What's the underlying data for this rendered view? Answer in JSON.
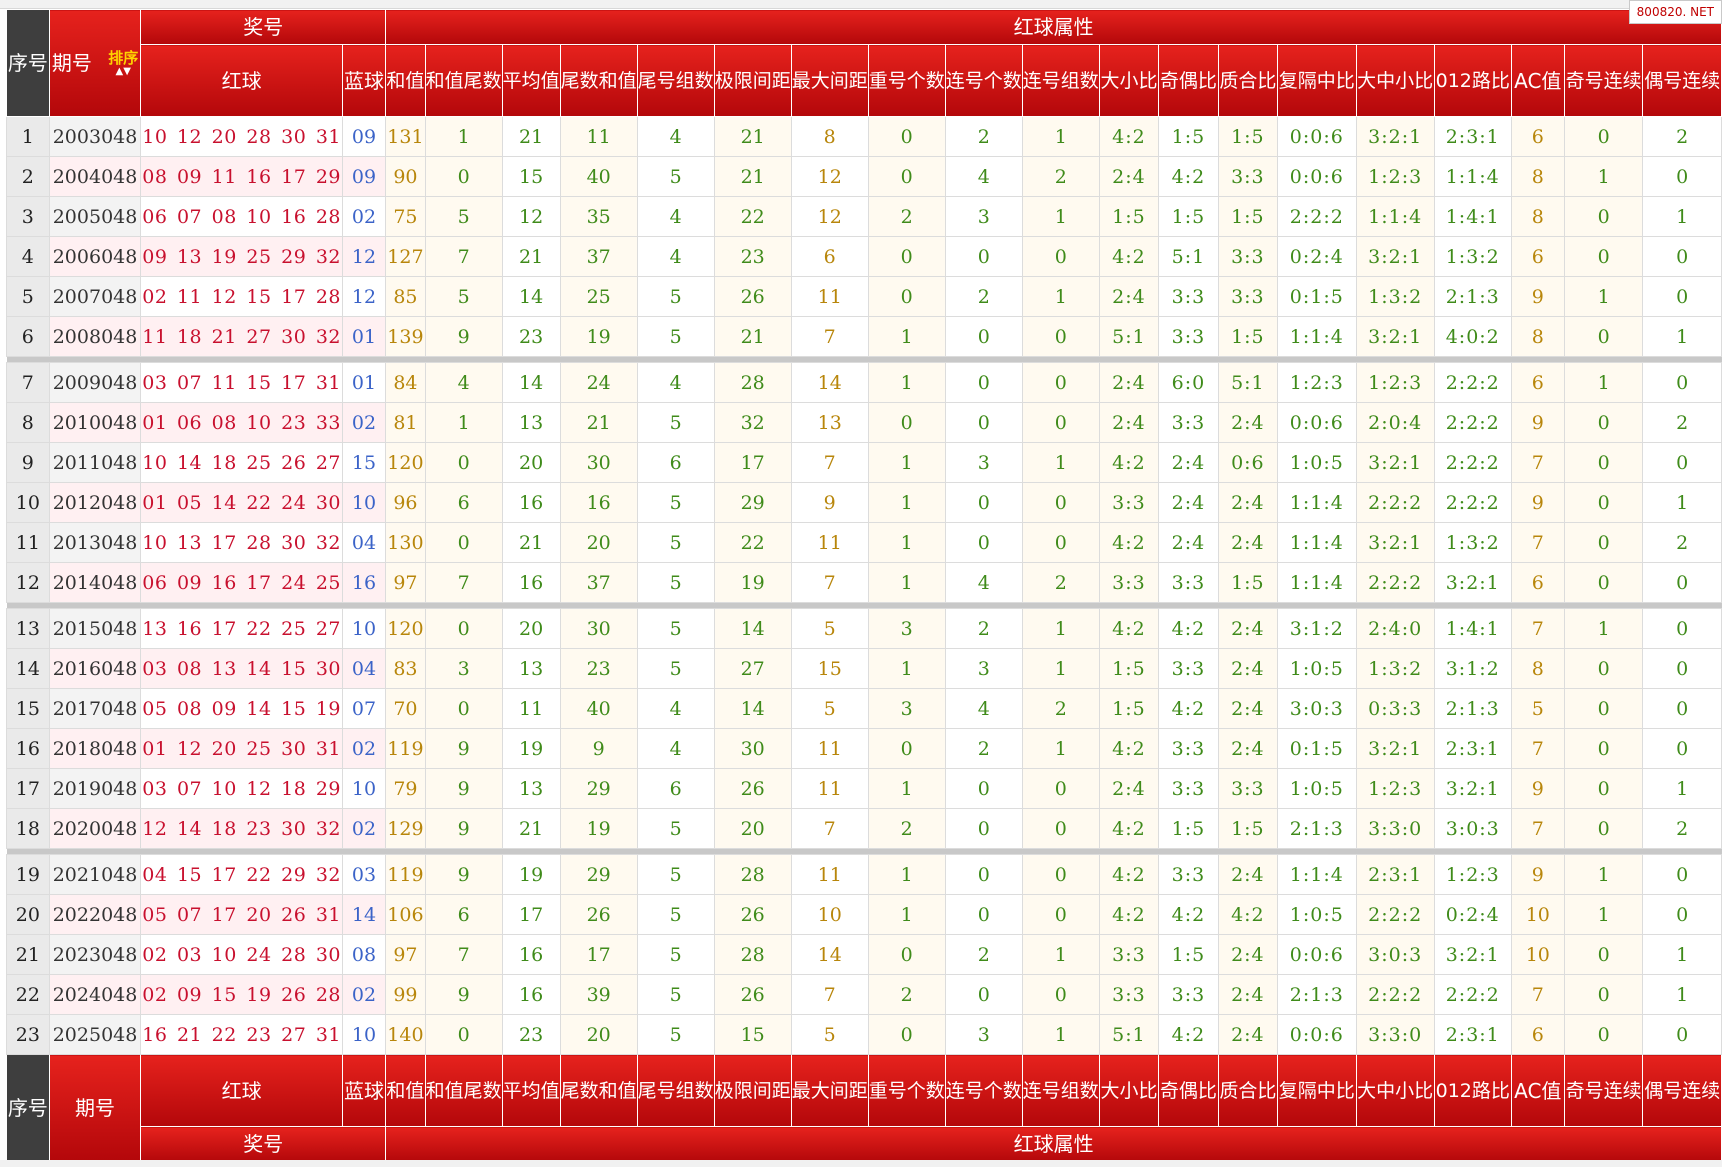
{
  "watermark": "800820. NET",
  "header": {
    "seq": "序号",
    "issue": "期号",
    "sort_label": "排序",
    "prize": "奖号",
    "red_attr": "红球属性",
    "red_ball": "红球",
    "blue_ball": "蓝球",
    "cols": [
      "和值",
      "和值尾数",
      "平均值",
      "尾数和值",
      "尾号组数",
      "极限间距",
      "最大间距",
      "重号个数",
      "连号个数",
      "连号组数",
      "大小比",
      "奇偶比",
      "质合比",
      "复隔中比",
      "大中小比",
      "012路比",
      "AC值",
      "奇号连续",
      "偶号连续"
    ]
  },
  "colors": {
    "header_red": "#c8100e",
    "red_ball": "#c8102e",
    "blue_ball": "#3b63c8",
    "attr_green": "#3f8b1a",
    "attr_gold": "#b8860b"
  },
  "rows": [
    {
      "seq": "1",
      "issue": "2003048",
      "red": "10 12 20 28 30 31",
      "blue": "09",
      "v": [
        "131",
        "1",
        "21",
        "11",
        "4",
        "21",
        "8",
        "0",
        "2",
        "1",
        "4:2",
        "1:5",
        "1:5",
        "0:0:6",
        "3:2:1",
        "2:3:1",
        "6",
        "0",
        "2"
      ]
    },
    {
      "seq": "2",
      "issue": "2004048",
      "red": "08 09 11 16 17 29",
      "blue": "09",
      "v": [
        "90",
        "0",
        "15",
        "40",
        "5",
        "21",
        "12",
        "0",
        "4",
        "2",
        "2:4",
        "4:2",
        "3:3",
        "0:0:6",
        "1:2:3",
        "1:1:4",
        "8",
        "1",
        "0"
      ]
    },
    {
      "seq": "3",
      "issue": "2005048",
      "red": "06 07 08 10 16 28",
      "blue": "02",
      "v": [
        "75",
        "5",
        "12",
        "35",
        "4",
        "22",
        "12",
        "2",
        "3",
        "1",
        "1:5",
        "1:5",
        "1:5",
        "2:2:2",
        "1:1:4",
        "1:4:1",
        "8",
        "0",
        "1"
      ]
    },
    {
      "seq": "4",
      "issue": "2006048",
      "red": "09 13 19 25 29 32",
      "blue": "12",
      "v": [
        "127",
        "7",
        "21",
        "37",
        "4",
        "23",
        "6",
        "0",
        "0",
        "0",
        "4:2",
        "5:1",
        "3:3",
        "0:2:4",
        "3:2:1",
        "1:3:2",
        "6",
        "0",
        "0"
      ]
    },
    {
      "seq": "5",
      "issue": "2007048",
      "red": "02 11 12 15 17 28",
      "blue": "12",
      "v": [
        "85",
        "5",
        "14",
        "25",
        "5",
        "26",
        "11",
        "0",
        "2",
        "1",
        "2:4",
        "3:3",
        "3:3",
        "0:1:5",
        "1:3:2",
        "2:1:3",
        "9",
        "1",
        "0"
      ]
    },
    {
      "seq": "6",
      "issue": "2008048",
      "red": "11 18 21 27 30 32",
      "blue": "01",
      "v": [
        "139",
        "9",
        "23",
        "19",
        "5",
        "21",
        "7",
        "1",
        "0",
        "0",
        "5:1",
        "3:3",
        "1:5",
        "1:1:4",
        "3:2:1",
        "4:0:2",
        "8",
        "0",
        "1"
      ]
    },
    {
      "seq": "7",
      "issue": "2009048",
      "red": "03 07 11 15 17 31",
      "blue": "01",
      "v": [
        "84",
        "4",
        "14",
        "24",
        "4",
        "28",
        "14",
        "1",
        "0",
        "0",
        "2:4",
        "6:0",
        "5:1",
        "1:2:3",
        "1:2:3",
        "2:2:2",
        "6",
        "1",
        "0"
      ]
    },
    {
      "seq": "8",
      "issue": "2010048",
      "red": "01 06 08 10 23 33",
      "blue": "02",
      "v": [
        "81",
        "1",
        "13",
        "21",
        "5",
        "32",
        "13",
        "0",
        "0",
        "0",
        "2:4",
        "3:3",
        "2:4",
        "0:0:6",
        "2:0:4",
        "2:2:2",
        "9",
        "0",
        "2"
      ]
    },
    {
      "seq": "9",
      "issue": "2011048",
      "red": "10 14 18 25 26 27",
      "blue": "15",
      "v": [
        "120",
        "0",
        "20",
        "30",
        "6",
        "17",
        "7",
        "1",
        "3",
        "1",
        "4:2",
        "2:4",
        "0:6",
        "1:0:5",
        "3:2:1",
        "2:2:2",
        "7",
        "0",
        "0"
      ]
    },
    {
      "seq": "10",
      "issue": "2012048",
      "red": "01 05 14 22 24 30",
      "blue": "10",
      "v": [
        "96",
        "6",
        "16",
        "16",
        "5",
        "29",
        "9",
        "1",
        "0",
        "0",
        "3:3",
        "2:4",
        "2:4",
        "1:1:4",
        "2:2:2",
        "2:2:2",
        "9",
        "0",
        "1"
      ]
    },
    {
      "seq": "11",
      "issue": "2013048",
      "red": "10 13 17 28 30 32",
      "blue": "04",
      "v": [
        "130",
        "0",
        "21",
        "20",
        "5",
        "22",
        "11",
        "1",
        "0",
        "0",
        "4:2",
        "2:4",
        "2:4",
        "1:1:4",
        "3:2:1",
        "1:3:2",
        "7",
        "0",
        "2"
      ]
    },
    {
      "seq": "12",
      "issue": "2014048",
      "red": "06 09 16 17 24 25",
      "blue": "16",
      "v": [
        "97",
        "7",
        "16",
        "37",
        "5",
        "19",
        "7",
        "1",
        "4",
        "2",
        "3:3",
        "3:3",
        "1:5",
        "1:1:4",
        "2:2:2",
        "3:2:1",
        "6",
        "0",
        "0"
      ]
    },
    {
      "seq": "13",
      "issue": "2015048",
      "red": "13 16 17 22 25 27",
      "blue": "10",
      "v": [
        "120",
        "0",
        "20",
        "30",
        "5",
        "14",
        "5",
        "3",
        "2",
        "1",
        "4:2",
        "4:2",
        "2:4",
        "3:1:2",
        "2:4:0",
        "1:4:1",
        "7",
        "1",
        "0"
      ]
    },
    {
      "seq": "14",
      "issue": "2016048",
      "red": "03 08 13 14 15 30",
      "blue": "04",
      "v": [
        "83",
        "3",
        "13",
        "23",
        "5",
        "27",
        "15",
        "1",
        "3",
        "1",
        "1:5",
        "3:3",
        "2:4",
        "1:0:5",
        "1:3:2",
        "3:1:2",
        "8",
        "0",
        "0"
      ]
    },
    {
      "seq": "15",
      "issue": "2017048",
      "red": "05 08 09 14 15 19",
      "blue": "07",
      "v": [
        "70",
        "0",
        "11",
        "40",
        "4",
        "14",
        "5",
        "3",
        "4",
        "2",
        "1:5",
        "4:2",
        "2:4",
        "3:0:3",
        "0:3:3",
        "2:1:3",
        "5",
        "0",
        "0"
      ]
    },
    {
      "seq": "16",
      "issue": "2018048",
      "red": "01 12 20 25 30 31",
      "blue": "02",
      "v": [
        "119",
        "9",
        "19",
        "9",
        "4",
        "30",
        "11",
        "0",
        "2",
        "1",
        "4:2",
        "3:3",
        "2:4",
        "0:1:5",
        "3:2:1",
        "2:3:1",
        "7",
        "0",
        "0"
      ]
    },
    {
      "seq": "17",
      "issue": "2019048",
      "red": "03 07 10 12 18 29",
      "blue": "10",
      "v": [
        "79",
        "9",
        "13",
        "29",
        "6",
        "26",
        "11",
        "1",
        "0",
        "0",
        "2:4",
        "3:3",
        "3:3",
        "1:0:5",
        "1:2:3",
        "3:2:1",
        "9",
        "0",
        "1"
      ]
    },
    {
      "seq": "18",
      "issue": "2020048",
      "red": "12 14 18 23 30 32",
      "blue": "02",
      "v": [
        "129",
        "9",
        "21",
        "19",
        "5",
        "20",
        "7",
        "2",
        "0",
        "0",
        "4:2",
        "1:5",
        "1:5",
        "2:1:3",
        "3:3:0",
        "3:0:3",
        "7",
        "0",
        "2"
      ]
    },
    {
      "seq": "19",
      "issue": "2021048",
      "red": "04 15 17 22 29 32",
      "blue": "03",
      "v": [
        "119",
        "9",
        "19",
        "29",
        "5",
        "28",
        "11",
        "1",
        "0",
        "0",
        "4:2",
        "3:3",
        "2:4",
        "1:1:4",
        "2:3:1",
        "1:2:3",
        "9",
        "1",
        "0"
      ]
    },
    {
      "seq": "20",
      "issue": "2022048",
      "red": "05 07 17 20 26 31",
      "blue": "14",
      "v": [
        "106",
        "6",
        "17",
        "26",
        "5",
        "26",
        "10",
        "1",
        "0",
        "0",
        "4:2",
        "4:2",
        "4:2",
        "1:0:5",
        "2:2:2",
        "0:2:4",
        "10",
        "1",
        "0"
      ]
    },
    {
      "seq": "21",
      "issue": "2023048",
      "red": "02 03 10 24 28 30",
      "blue": "08",
      "v": [
        "97",
        "7",
        "16",
        "17",
        "5",
        "28",
        "14",
        "0",
        "2",
        "1",
        "3:3",
        "1:5",
        "2:4",
        "0:0:6",
        "3:0:3",
        "3:2:1",
        "10",
        "0",
        "1"
      ]
    },
    {
      "seq": "22",
      "issue": "2024048",
      "red": "02 09 15 19 26 28",
      "blue": "02",
      "v": [
        "99",
        "9",
        "16",
        "39",
        "5",
        "26",
        "7",
        "2",
        "0",
        "0",
        "3:3",
        "3:3",
        "2:4",
        "2:1:3",
        "2:2:2",
        "2:2:2",
        "7",
        "0",
        "1"
      ]
    },
    {
      "seq": "23",
      "issue": "2025048",
      "red": "16 21 22 23 27 31",
      "blue": "10",
      "v": [
        "140",
        "0",
        "23",
        "20",
        "5",
        "15",
        "5",
        "0",
        "3",
        "1",
        "5:1",
        "4:2",
        "2:4",
        "0:0:6",
        "3:3:0",
        "2:3:1",
        "6",
        "0",
        "0"
      ]
    }
  ]
}
